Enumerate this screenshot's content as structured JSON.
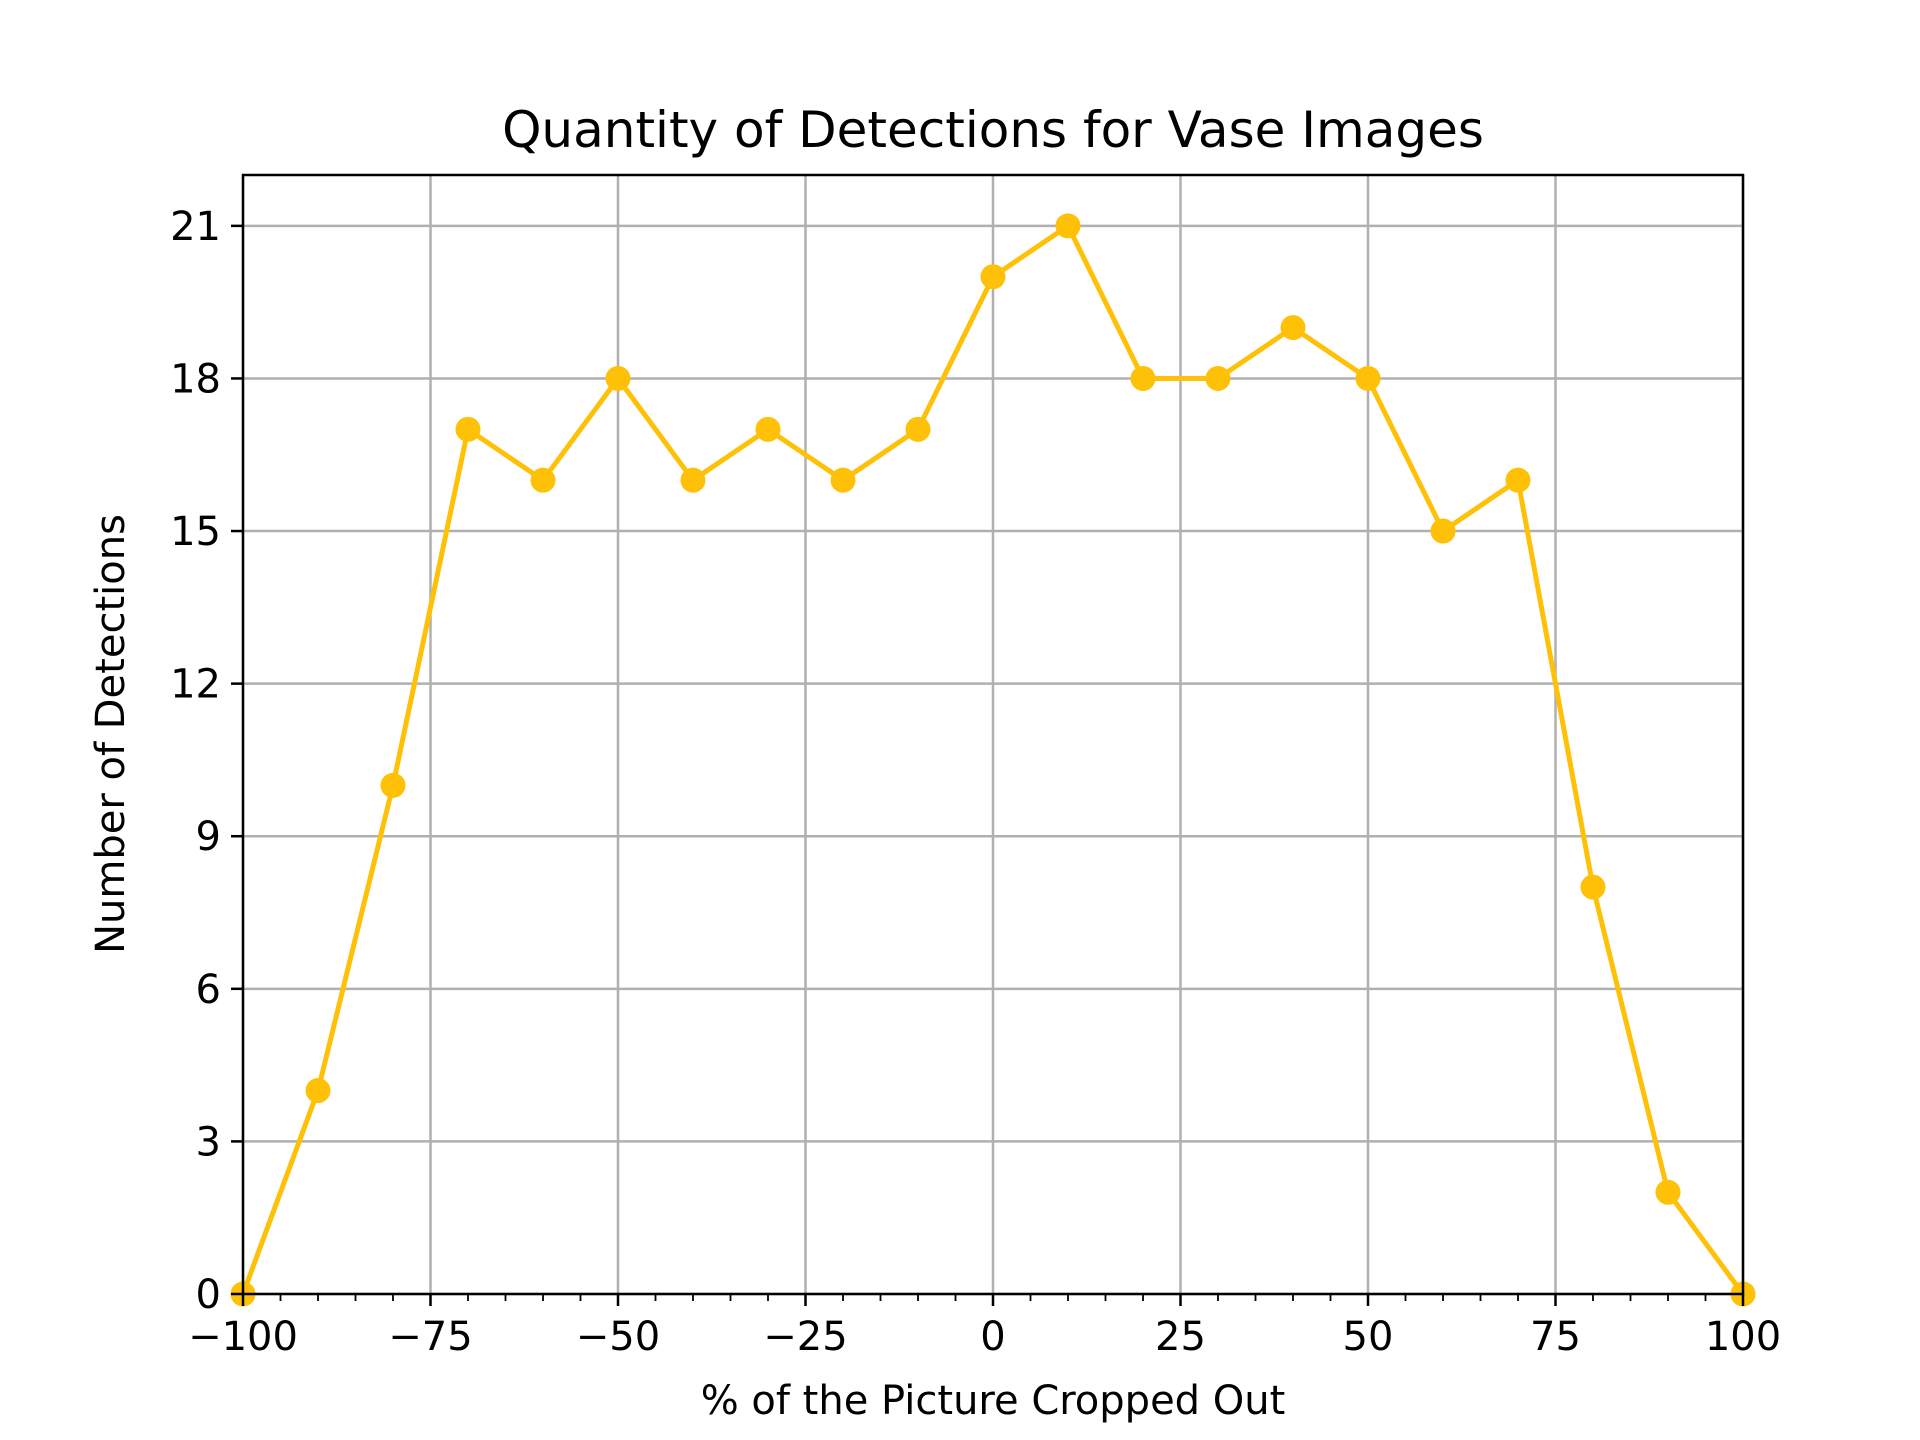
{
  "chart_data": {
    "type": "line",
    "title": "Quantity of Detections for Vase Images",
    "xlabel": "% of the Picture Cropped Out",
    "ylabel": "Number of Detections",
    "xlim": [
      -100,
      100
    ],
    "ylim": [
      0,
      22
    ],
    "xticks": [
      -100,
      -75,
      -50,
      -25,
      0,
      25,
      50,
      75,
      100
    ],
    "xtick_labels": [
      "−100",
      "−75",
      "−50",
      "−25",
      "0",
      "25",
      "50",
      "75",
      "100"
    ],
    "yticks": [
      0,
      3,
      6,
      9,
      12,
      15,
      18,
      21
    ],
    "ytick_labels": [
      "0",
      "3",
      "6",
      "9",
      "12",
      "15",
      "18",
      "21"
    ],
    "grid": true,
    "color": "#FFC107",
    "x": [
      -100,
      -90,
      -80,
      -70,
      -60,
      -50,
      -40,
      -30,
      -20,
      -10,
      0,
      10,
      20,
      30,
      40,
      50,
      60,
      70,
      80,
      90,
      100
    ],
    "y": [
      0,
      4,
      10,
      17,
      16,
      18,
      16,
      17,
      16,
      17,
      20,
      21,
      18,
      18,
      19,
      18,
      15,
      16,
      8,
      2,
      0
    ]
  }
}
